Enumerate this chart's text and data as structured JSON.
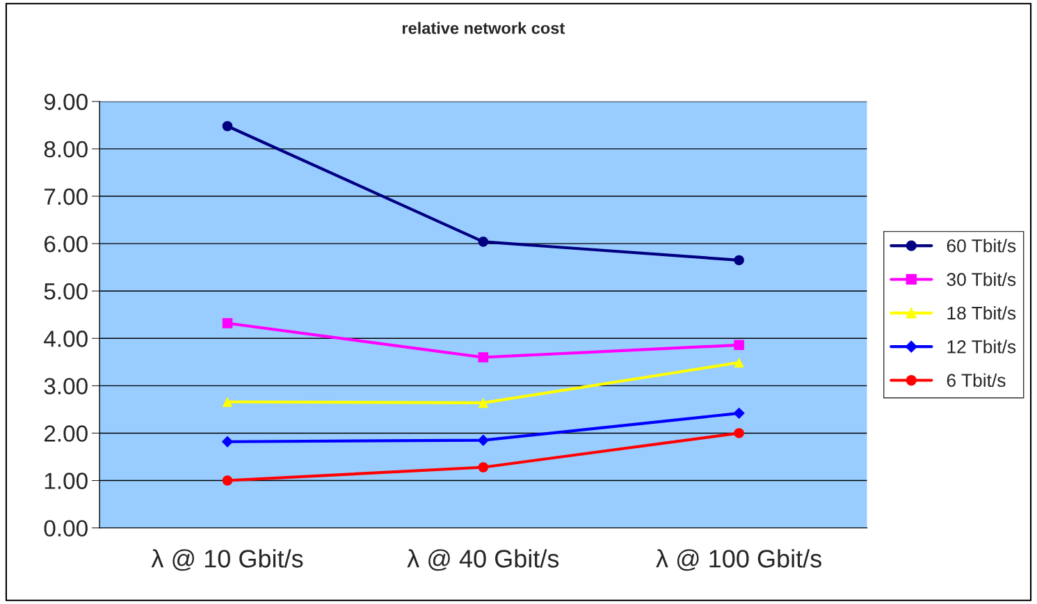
{
  "chart_data": {
    "type": "line",
    "title": "relative network cost",
    "categories": [
      "λ @ 10 Gbit/s",
      "λ @ 40 Gbit/s",
      "λ @ 100 Gbit/s"
    ],
    "series": [
      {
        "name": "60 Tbit/s",
        "color": "#000080",
        "marker": "circle",
        "values": [
          8.48,
          6.04,
          5.65
        ]
      },
      {
        "name": "30 Tbit/s",
        "color": "#ff00ff",
        "marker": "square",
        "values": [
          4.32,
          3.6,
          3.86
        ]
      },
      {
        "name": "18 Tbit/s",
        "color": "#ffff00",
        "marker": "triangle",
        "values": [
          2.66,
          2.64,
          3.49
        ]
      },
      {
        "name": "12 Tbit/s",
        "color": "#0000ff",
        "marker": "diamond",
        "values": [
          1.82,
          1.85,
          2.42
        ]
      },
      {
        "name": "6 Tbit/s",
        "color": "#ff0000",
        "marker": "circle",
        "values": [
          1.0,
          1.28,
          2.0
        ]
      }
    ],
    "ylim": [
      0,
      9
    ],
    "yticks": [
      {
        "value": 0,
        "label": "0.00"
      },
      {
        "value": 1,
        "label": "1.00"
      },
      {
        "value": 2,
        "label": "2.00"
      },
      {
        "value": 3,
        "label": "3.00"
      },
      {
        "value": 4,
        "label": "4.00"
      },
      {
        "value": 5,
        "label": "5.00"
      },
      {
        "value": 6,
        "label": "6.00"
      },
      {
        "value": 7,
        "label": "7.00"
      },
      {
        "value": 8,
        "label": "8.00"
      },
      {
        "value": 9,
        "label": "9.00"
      }
    ],
    "grid": "y",
    "legend": "right",
    "line_style": "solid"
  }
}
